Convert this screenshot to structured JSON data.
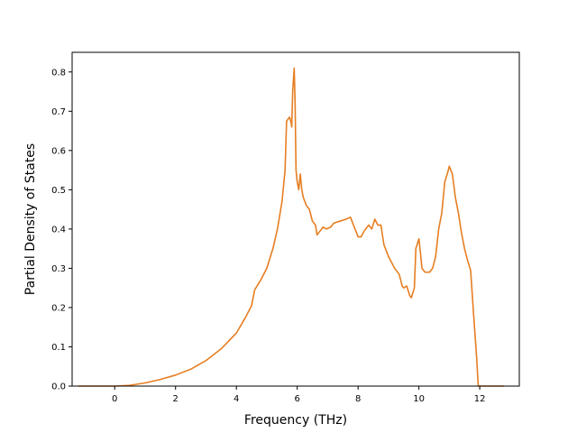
{
  "chart_data": {
    "type": "line",
    "title": "",
    "xlabel": "Frequency (THz)",
    "ylabel": "Partial Density of States",
    "xlim": [
      -1.4,
      13.3
    ],
    "ylim": [
      0.0,
      0.85
    ],
    "xticks": [
      0,
      2,
      4,
      6,
      8,
      10,
      12
    ],
    "xtick_labels": [
      "0",
      "2",
      "4",
      "6",
      "8",
      "10",
      "12"
    ],
    "yticks": [
      0.0,
      0.1,
      0.2,
      0.3,
      0.4,
      0.5,
      0.6,
      0.7,
      0.8
    ],
    "ytick_labels": [
      "0.0",
      "0.1",
      "0.2",
      "0.3",
      "0.4",
      "0.5",
      "0.6",
      "0.7",
      "0.8"
    ],
    "grid": false,
    "legend": "none",
    "series": [
      {
        "color": "#e67e22",
        "points": [
          [
            -1.2,
            0.0
          ],
          [
            0.0,
            0.0
          ],
          [
            0.5,
            0.002
          ],
          [
            1.0,
            0.008
          ],
          [
            1.5,
            0.017
          ],
          [
            2.0,
            0.028
          ],
          [
            2.5,
            0.043
          ],
          [
            3.0,
            0.065
          ],
          [
            3.5,
            0.095
          ],
          [
            4.0,
            0.135
          ],
          [
            4.3,
            0.175
          ],
          [
            4.5,
            0.205
          ],
          [
            4.6,
            0.245
          ],
          [
            4.8,
            0.27
          ],
          [
            5.0,
            0.3
          ],
          [
            5.2,
            0.35
          ],
          [
            5.35,
            0.4
          ],
          [
            5.5,
            0.47
          ],
          [
            5.6,
            0.55
          ],
          [
            5.65,
            0.675
          ],
          [
            5.7,
            0.68
          ],
          [
            5.75,
            0.685
          ],
          [
            5.8,
            0.67
          ],
          [
            5.82,
            0.66
          ],
          [
            5.85,
            0.75
          ],
          [
            5.9,
            0.81
          ],
          [
            5.93,
            0.72
          ],
          [
            5.96,
            0.55
          ],
          [
            6.0,
            0.52
          ],
          [
            6.05,
            0.5
          ],
          [
            6.1,
            0.54
          ],
          [
            6.15,
            0.5
          ],
          [
            6.2,
            0.48
          ],
          [
            6.3,
            0.46
          ],
          [
            6.4,
            0.45
          ],
          [
            6.5,
            0.42
          ],
          [
            6.6,
            0.41
          ],
          [
            6.65,
            0.385
          ],
          [
            6.75,
            0.395
          ],
          [
            6.85,
            0.405
          ],
          [
            6.95,
            0.4
          ],
          [
            7.1,
            0.405
          ],
          [
            7.2,
            0.415
          ],
          [
            7.4,
            0.42
          ],
          [
            7.6,
            0.425
          ],
          [
            7.75,
            0.43
          ],
          [
            7.85,
            0.41
          ],
          [
            8.0,
            0.38
          ],
          [
            8.1,
            0.38
          ],
          [
            8.2,
            0.395
          ],
          [
            8.35,
            0.41
          ],
          [
            8.45,
            0.4
          ],
          [
            8.55,
            0.425
          ],
          [
            8.65,
            0.41
          ],
          [
            8.75,
            0.41
          ],
          [
            8.85,
            0.36
          ],
          [
            9.0,
            0.33
          ],
          [
            9.2,
            0.3
          ],
          [
            9.35,
            0.285
          ],
          [
            9.45,
            0.255
          ],
          [
            9.5,
            0.25
          ],
          [
            9.6,
            0.255
          ],
          [
            9.7,
            0.23
          ],
          [
            9.75,
            0.225
          ],
          [
            9.85,
            0.25
          ],
          [
            9.9,
            0.35
          ],
          [
            10.0,
            0.375
          ],
          [
            10.05,
            0.34
          ],
          [
            10.1,
            0.3
          ],
          [
            10.2,
            0.29
          ],
          [
            10.35,
            0.29
          ],
          [
            10.45,
            0.3
          ],
          [
            10.55,
            0.33
          ],
          [
            10.65,
            0.4
          ],
          [
            10.75,
            0.44
          ],
          [
            10.85,
            0.52
          ],
          [
            10.95,
            0.545
          ],
          [
            11.0,
            0.56
          ],
          [
            11.1,
            0.54
          ],
          [
            11.2,
            0.48
          ],
          [
            11.3,
            0.44
          ],
          [
            11.4,
            0.39
          ],
          [
            11.5,
            0.35
          ],
          [
            11.6,
            0.32
          ],
          [
            11.7,
            0.295
          ],
          [
            11.8,
            0.18
          ],
          [
            11.9,
            0.07
          ],
          [
            11.95,
            0.0
          ],
          [
            12.8,
            0.0
          ]
        ]
      }
    ]
  }
}
